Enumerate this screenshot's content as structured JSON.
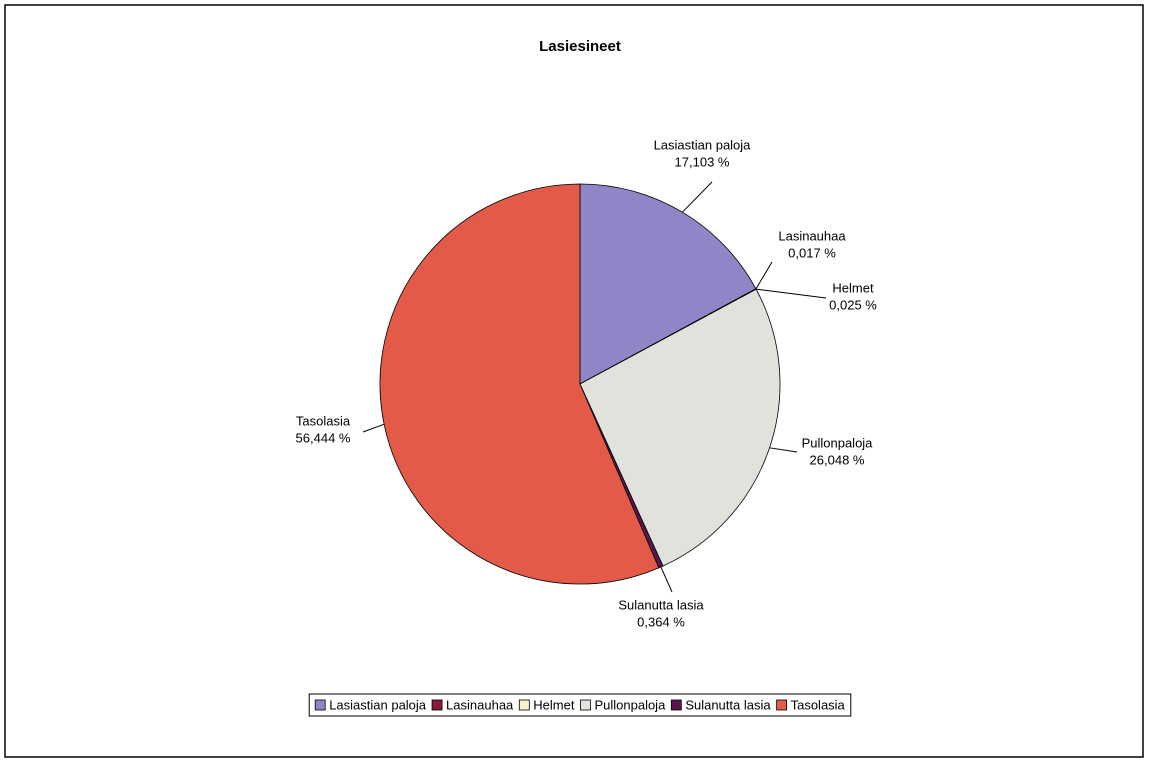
{
  "chart_data": {
    "type": "pie",
    "title": "Lasiesineet",
    "categories": [
      "Lasiastian paloja",
      "Lasinauhaa",
      "Helmet",
      "Pullonpaloja",
      "Sulanutta lasia",
      "Tasolasia"
    ],
    "values": [
      17.103,
      0.017,
      0.025,
      26.048,
      0.364,
      56.444
    ],
    "value_labels": [
      "17,103 %",
      "0,017 %",
      "0,025 %",
      "26,048 %",
      "0,364 %",
      "56,444 %"
    ],
    "colors": [
      "#8e86c6",
      "#8b1a3a",
      "#f6f4c6",
      "#dfe3dc",
      "#5c1450",
      "#e45a48"
    ],
    "legend": "bottom"
  }
}
